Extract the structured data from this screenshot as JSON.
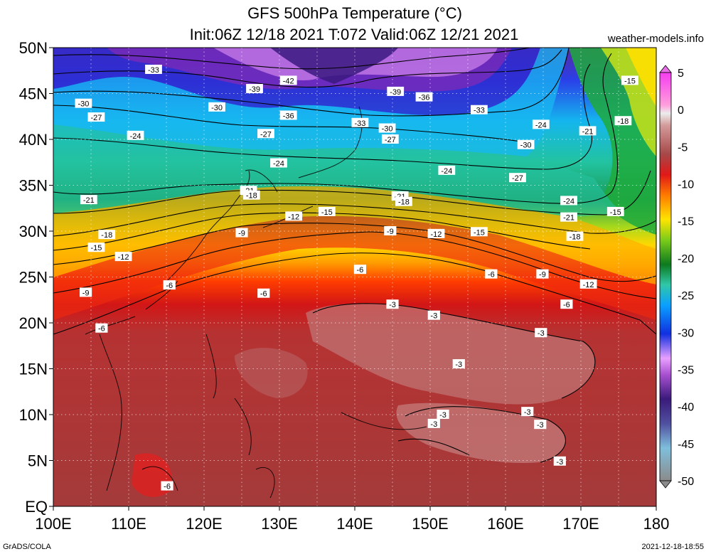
{
  "header": {
    "title": "GFS 500hPa Temperature (°C)",
    "subtitle": "Init:06Z 12/18 2021 T:072 Valid:06Z 12/21 2021",
    "site": "weather-models.info"
  },
  "footer": {
    "left": "GrADS/COLA",
    "right": "2021-12-18-18:55"
  },
  "map": {
    "lat_labels": [
      "50N",
      "45N",
      "40N",
      "35N",
      "30N",
      "25N",
      "20N",
      "15N",
      "10N",
      "5N",
      "EQ"
    ],
    "lon_labels": [
      "100E",
      "110E",
      "120E",
      "130E",
      "140E",
      "150E",
      "160E",
      "170E",
      "180"
    ],
    "lat_range": [
      0,
      50
    ],
    "lon_range": [
      100,
      180
    ],
    "grid": "dotted",
    "contour_labels": [
      {
        "t": "-33",
        "lon": 113.3,
        "lat": 47.6
      },
      {
        "t": "-42",
        "lon": 131.2,
        "lat": 46.4
      },
      {
        "t": "-39",
        "lon": 126.7,
        "lat": 45.5
      },
      {
        "t": "-39",
        "lon": 145.4,
        "lat": 45.2
      },
      {
        "t": "-36",
        "lon": 149.2,
        "lat": 44.6
      },
      {
        "t": "-30",
        "lon": 104.0,
        "lat": 43.9
      },
      {
        "t": "-30",
        "lon": 121.7,
        "lat": 43.5
      },
      {
        "t": "-33",
        "lon": 156.5,
        "lat": 43.2
      },
      {
        "t": "-36",
        "lon": 131.2,
        "lat": 42.6
      },
      {
        "t": "-27",
        "lon": 105.7,
        "lat": 42.4
      },
      {
        "t": "-33",
        "lon": 140.7,
        "lat": 41.8
      },
      {
        "t": "-30",
        "lon": 144.3,
        "lat": 41.2
      },
      {
        "t": "-24",
        "lon": 164.7,
        "lat": 41.6
      },
      {
        "t": "-15",
        "lon": 176.5,
        "lat": 46.4
      },
      {
        "t": "-18",
        "lon": 175.6,
        "lat": 42.0
      },
      {
        "t": "-21",
        "lon": 170.9,
        "lat": 40.9
      },
      {
        "t": "-27",
        "lon": 128.2,
        "lat": 40.6
      },
      {
        "t": "-24",
        "lon": 110.9,
        "lat": 40.4
      },
      {
        "t": "-27",
        "lon": 144.7,
        "lat": 40.0
      },
      {
        "t": "-30",
        "lon": 162.7,
        "lat": 39.4
      },
      {
        "t": "-24",
        "lon": 129.9,
        "lat": 37.4
      },
      {
        "t": "-24",
        "lon": 152.2,
        "lat": 36.6
      },
      {
        "t": "-27",
        "lon": 161.6,
        "lat": 35.8
      },
      {
        "t": "-21",
        "lon": 125.9,
        "lat": 34.4
      },
      {
        "t": "-18",
        "lon": 126.3,
        "lat": 33.9
      },
      {
        "t": "-21",
        "lon": 146.0,
        "lat": 33.8
      },
      {
        "t": "-18",
        "lon": 146.5,
        "lat": 33.2
      },
      {
        "t": "-24",
        "lon": 168.4,
        "lat": 33.3
      },
      {
        "t": "-21",
        "lon": 104.7,
        "lat": 33.4
      },
      {
        "t": "-21",
        "lon": 168.4,
        "lat": 31.5
      },
      {
        "t": "-15",
        "lon": 174.6,
        "lat": 32.1
      },
      {
        "t": "-15",
        "lon": 136.3,
        "lat": 32.1
      },
      {
        "t": "-12",
        "lon": 131.9,
        "lat": 31.6
      },
      {
        "t": "-18",
        "lon": 107.1,
        "lat": 29.6
      },
      {
        "t": "-9",
        "lon": 125.0,
        "lat": 29.8
      },
      {
        "t": "-9",
        "lon": 144.7,
        "lat": 30.0
      },
      {
        "t": "-12",
        "lon": 150.8,
        "lat": 29.7
      },
      {
        "t": "-15",
        "lon": 156.5,
        "lat": 29.9
      },
      {
        "t": "-18",
        "lon": 169.2,
        "lat": 29.4
      },
      {
        "t": "-15",
        "lon": 105.7,
        "lat": 28.2
      },
      {
        "t": "-12",
        "lon": 109.3,
        "lat": 27.2
      },
      {
        "t": "-6",
        "lon": 140.7,
        "lat": 25.8
      },
      {
        "t": "-6",
        "lon": 158.1,
        "lat": 25.3
      },
      {
        "t": "-9",
        "lon": 164.9,
        "lat": 25.3
      },
      {
        "t": "-12",
        "lon": 171.0,
        "lat": 24.2
      },
      {
        "t": "-6",
        "lon": 115.4,
        "lat": 24.1
      },
      {
        "t": "-9",
        "lon": 104.3,
        "lat": 23.3
      },
      {
        "t": "-6",
        "lon": 127.9,
        "lat": 23.2
      },
      {
        "t": "-6",
        "lon": 168.1,
        "lat": 22.0
      },
      {
        "t": "-3",
        "lon": 145.0,
        "lat": 22.0
      },
      {
        "t": "-3",
        "lon": 150.5,
        "lat": 20.8
      },
      {
        "t": "-6",
        "lon": 106.4,
        "lat": 19.4
      },
      {
        "t": "-3",
        "lon": 164.7,
        "lat": 18.9
      },
      {
        "t": "-3",
        "lon": 153.8,
        "lat": 15.5
      },
      {
        "t": "-3",
        "lon": 162.9,
        "lat": 10.3
      },
      {
        "t": "-3",
        "lon": 151.7,
        "lat": 10.0
      },
      {
        "t": "-3",
        "lon": 150.5,
        "lat": 9.0
      },
      {
        "t": "-3",
        "lon": 164.6,
        "lat": 8.9
      },
      {
        "t": "-3",
        "lon": 167.2,
        "lat": 4.9
      },
      {
        "t": "-6",
        "lon": 115.1,
        "lat": 2.2
      }
    ]
  },
  "legend": {
    "labels": [
      "5",
      "0",
      "-5",
      "-10",
      "-15",
      "-20",
      "-25",
      "-30",
      "-35",
      "-40",
      "-45",
      "-50"
    ],
    "range": [
      -50,
      5
    ],
    "colors": [
      "#8b8b8b",
      "#5d8fb0",
      "#7fbfdc",
      "#5050a0",
      "#3a1a7a",
      "#6a2aa6",
      "#c070d8",
      "#e8a0ff",
      "#0018b8",
      "#1d4fff",
      "#0aa0ff",
      "#20d8ff",
      "#30c8a8",
      "#1aa070",
      "#0d7a1e",
      "#2eb02e",
      "#9ed21a",
      "#ffe400",
      "#ffb400",
      "#ff7a00",
      "#ee2800",
      "#c81414",
      "#b83a3a",
      "#a64848",
      "#bb7070",
      "#d49a9a",
      "#ececec",
      "#ff82d0",
      "#f53cf0"
    ]
  }
}
